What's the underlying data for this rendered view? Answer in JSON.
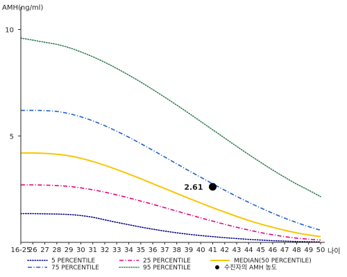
{
  "chart_data": {
    "type": "line",
    "ylabel": "AMH(ng/ml)",
    "xlabel": "나이",
    "ylim": [
      0,
      10.8
    ],
    "y_ticks": [
      "5",
      "10"
    ],
    "categories": [
      "16-25",
      "26",
      "27",
      "28",
      "29",
      "30",
      "31",
      "32",
      "33",
      "34",
      "35",
      "36",
      "37",
      "38",
      "39",
      "40",
      "41",
      "42",
      "43",
      "44",
      "45",
      "46",
      "47",
      "48",
      "49",
      "50"
    ],
    "series": [
      {
        "name": "5 PERCENTILE",
        "color": "#000080",
        "dash": "dotted",
        "values": [
          1.35,
          1.35,
          1.34,
          1.33,
          1.31,
          1.26,
          1.18,
          1.06,
          0.94,
          0.83,
          0.72,
          0.62,
          0.53,
          0.45,
          0.38,
          0.32,
          0.27,
          0.22,
          0.18,
          0.14,
          0.11,
          0.08,
          0.06,
          0.04,
          0.03,
          0.02
        ]
      },
      {
        "name": "25 PERCENTILE",
        "color": "#e6007e",
        "dash": "dashdot",
        "values": [
          2.7,
          2.7,
          2.69,
          2.67,
          2.63,
          2.56,
          2.47,
          2.36,
          2.23,
          2.09,
          1.94,
          1.79,
          1.63,
          1.47,
          1.31,
          1.15,
          1.0,
          0.85,
          0.71,
          0.58,
          0.46,
          0.36,
          0.27,
          0.2,
          0.15,
          0.11
        ]
      },
      {
        "name": "MEDIAN(50 PERCENTILE)",
        "color": "#f7c600",
        "dash": "solid",
        "values": [
          4.2,
          4.2,
          4.18,
          4.14,
          4.07,
          3.95,
          3.8,
          3.62,
          3.42,
          3.21,
          2.99,
          2.76,
          2.53,
          2.3,
          2.07,
          1.85,
          1.63,
          1.42,
          1.22,
          1.03,
          0.86,
          0.71,
          0.57,
          0.45,
          0.35,
          0.27
        ]
      },
      {
        "name": "75 PERCENTILE",
        "color": "#1f5fc8",
        "dash": "dashdot",
        "values": [
          6.2,
          6.2,
          6.19,
          6.15,
          6.05,
          5.9,
          5.71,
          5.48,
          5.22,
          4.94,
          4.64,
          4.33,
          4.01,
          3.69,
          3.37,
          3.06,
          2.75,
          2.45,
          2.16,
          1.88,
          1.62,
          1.37,
          1.14,
          0.93,
          0.74,
          0.57
        ]
      },
      {
        "name": "95 PERCENTILE",
        "color": "#2e7d4f",
        "dash": "dotted",
        "values": [
          9.6,
          9.5,
          9.4,
          9.3,
          9.15,
          8.95,
          8.72,
          8.46,
          8.17,
          7.86,
          7.53,
          7.18,
          6.82,
          6.45,
          6.07,
          5.68,
          5.29,
          4.9,
          4.51,
          4.13,
          3.76,
          3.4,
          3.06,
          2.74,
          2.45,
          2.15
        ]
      }
    ],
    "point": {
      "name": "수진자의 AMH 농도",
      "category": "41",
      "value": 2.61,
      "label": "2.61",
      "color": "#000000"
    }
  }
}
